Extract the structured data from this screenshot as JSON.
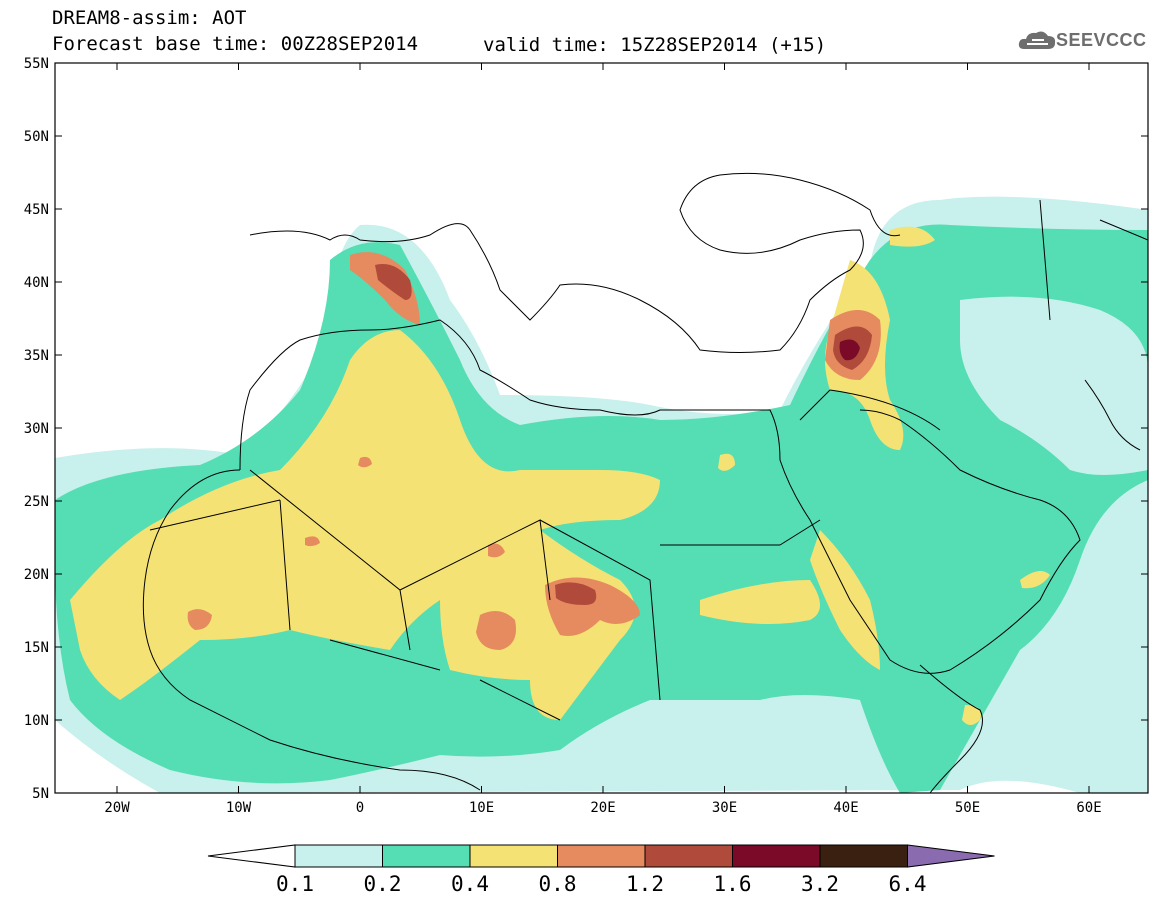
{
  "header": {
    "line1": "DREAM8-assim: AOT",
    "line2": "Forecast base time: 00Z28SEP2014",
    "valid": "valid time: 15Z28SEP2014 (+15)",
    "logo": "SEEVCCC"
  },
  "axes": {
    "lat_labels": [
      "55N",
      "50N",
      "45N",
      "40N",
      "35N",
      "30N",
      "25N",
      "20N",
      "15N",
      "10N",
      "5N"
    ],
    "lon_labels": [
      "20W",
      "10W",
      "0",
      "10E",
      "20E",
      "30E",
      "40E",
      "50E",
      "60E"
    ]
  },
  "colorbar": {
    "levels": [
      "0.1",
      "0.2",
      "0.4",
      "0.8",
      "1.2",
      "1.6",
      "3.2",
      "6.4"
    ],
    "colors": [
      "#c8f0ec",
      "#55ddb4",
      "#f5e274",
      "#e68a5f",
      "#b04a3a",
      "#7a0a28",
      "#3a2010",
      "#8b6bb0"
    ]
  }
}
